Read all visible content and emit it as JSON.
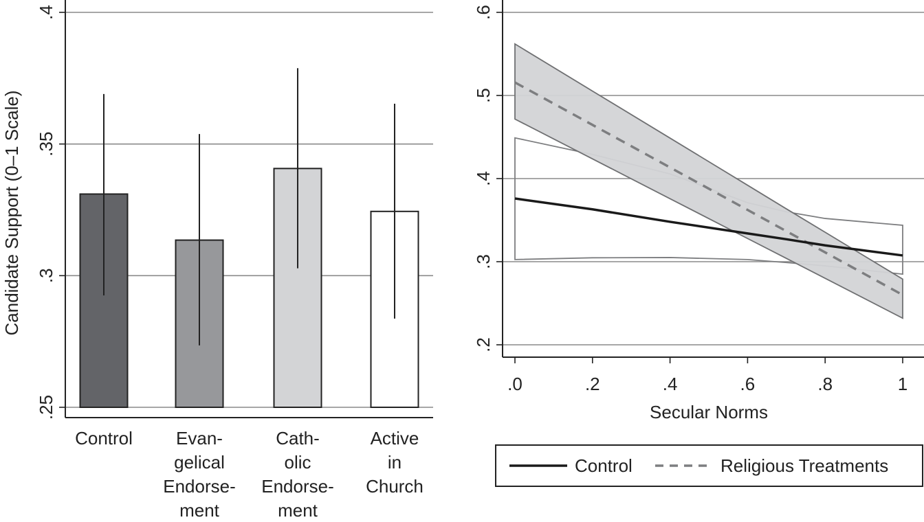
{
  "chart_data": [
    {
      "type": "bar",
      "ylabel": "Candidate Support (0–1 Scale)",
      "ylim": [
        0.25,
        0.4
      ],
      "yticks": [
        ".25",
        ".3",
        ".35",
        ".4"
      ],
      "ytick_values": [
        0.25,
        0.3,
        0.35,
        0.4
      ],
      "grid": true,
      "categories": [
        [
          "Control"
        ],
        [
          "Evan-",
          "gelical",
          "Endorse-",
          "ment"
        ],
        [
          "Cath-",
          "olic",
          "Endorse-",
          "ment"
        ],
        [
          "Active",
          "in",
          "Church"
        ]
      ],
      "values": [
        0.331,
        0.3135,
        0.3407,
        0.3244
      ],
      "ci_low": [
        0.2925,
        0.2735,
        0.3028,
        0.2837
      ],
      "ci_high": [
        0.369,
        0.3538,
        0.3788,
        0.3653
      ],
      "colors": [
        "#636468",
        "#97989b",
        "#d3d4d6",
        "#ffffff"
      ]
    },
    {
      "type": "line",
      "xlabel": "Secular Norms",
      "xlim": [
        0,
        1
      ],
      "xticks": [
        ".0",
        ".2",
        ".4",
        ".6",
        ".8",
        "1"
      ],
      "xtick_values": [
        0,
        0.2,
        0.4,
        0.6,
        0.8,
        1
      ],
      "ylim": [
        0.2,
        0.6
      ],
      "yticks": [
        ".2",
        ".3",
        ".4",
        ".5",
        ".6"
      ],
      "ytick_values": [
        0.2,
        0.3,
        0.4,
        0.5,
        0.6
      ],
      "grid": true,
      "legend_position": "bottom",
      "x": [
        0,
        0.2,
        0.4,
        0.6,
        0.7,
        0.8,
        1
      ],
      "series": [
        {
          "name": "Control",
          "style": "solid",
          "color": "#1a1a1a",
          "values": [
            0.376,
            0.363,
            0.348,
            0.334,
            0.327,
            0.3196,
            0.3075
          ],
          "ci_low": [
            0.3026,
            0.3047,
            0.305,
            0.3026,
            0.299,
            0.295,
            0.285
          ],
          "ci_high": [
            0.449,
            0.429,
            0.4056,
            0.371,
            0.36,
            0.352,
            0.3438
          ]
        },
        {
          "name": "Religious Treatments",
          "style": "dashed",
          "color": "#7d7e80",
          "values": [
            0.5157,
            0.4646,
            0.4134,
            0.3623,
            0.3367,
            0.3112,
            0.26
          ],
          "ci_low": [
            0.4716,
            0.4237,
            0.3758,
            0.3279,
            0.304,
            0.28,
            0.232
          ],
          "ci_high": [
            0.562,
            0.5053,
            0.4487,
            0.392,
            0.3636,
            0.3354,
            0.279
          ]
        }
      ]
    }
  ]
}
